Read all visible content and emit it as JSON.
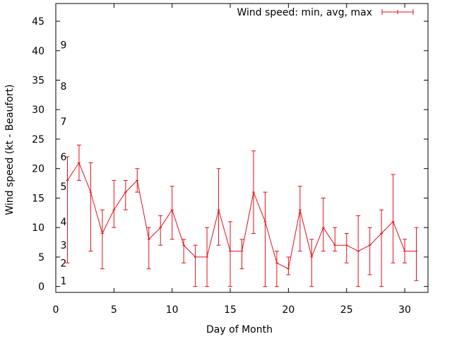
{
  "chart_data": {
    "type": "line",
    "title": "",
    "xlabel": "Day of Month",
    "ylabel": "Wind speed (kt - Beaufort)",
    "xlim": [
      0,
      32
    ],
    "ylim": [
      -1,
      48
    ],
    "x_ticks": [
      0,
      5,
      10,
      15,
      20,
      25,
      30
    ],
    "y_ticks": [
      0,
      5,
      10,
      15,
      20,
      25,
      30,
      35,
      40,
      45
    ],
    "beaufort_labels": [
      {
        "label": "1",
        "at": 1
      },
      {
        "label": "2",
        "at": 4
      },
      {
        "label": "3",
        "at": 7
      },
      {
        "label": "4",
        "at": 11
      },
      {
        "label": "5",
        "at": 17
      },
      {
        "label": "6",
        "at": 22
      },
      {
        "label": "7",
        "at": 28
      },
      {
        "label": "8",
        "at": 34
      },
      {
        "label": "9",
        "at": 41
      }
    ],
    "legend": {
      "label": "Wind speed: min, avg, max",
      "position": "top-right"
    },
    "series": [
      {
        "name": "Wind speed: min, avg, max",
        "color": "#e0101a",
        "x": [
          1,
          2,
          3,
          4,
          5,
          6,
          7,
          8,
          9,
          10,
          11,
          12,
          13,
          14,
          15,
          16,
          17,
          18,
          19,
          20,
          21,
          22,
          23,
          24,
          25,
          26,
          27,
          28,
          29,
          30,
          31
        ],
        "avg": [
          18,
          21,
          16,
          9,
          13,
          16,
          18,
          8,
          10,
          13,
          7,
          5,
          5,
          13,
          6,
          6,
          16,
          11,
          4,
          3,
          13,
          5,
          10,
          7,
          7,
          6,
          7,
          9,
          11,
          6,
          6
        ],
        "min": [
          4,
          18,
          6,
          3,
          10,
          13,
          16,
          3,
          7,
          8,
          4,
          0,
          0,
          7,
          0,
          3,
          9,
          0,
          0,
          2,
          6,
          0,
          6,
          6,
          4,
          0,
          2,
          0,
          4,
          4,
          1
        ],
        "max": [
          22,
          24,
          21,
          13,
          18,
          18,
          20,
          10,
          12,
          17,
          8,
          7,
          10,
          20,
          11,
          8,
          23,
          16,
          6,
          5,
          17,
          8,
          15,
          10,
          9,
          12,
          10,
          13,
          19,
          8,
          10
        ]
      }
    ]
  }
}
